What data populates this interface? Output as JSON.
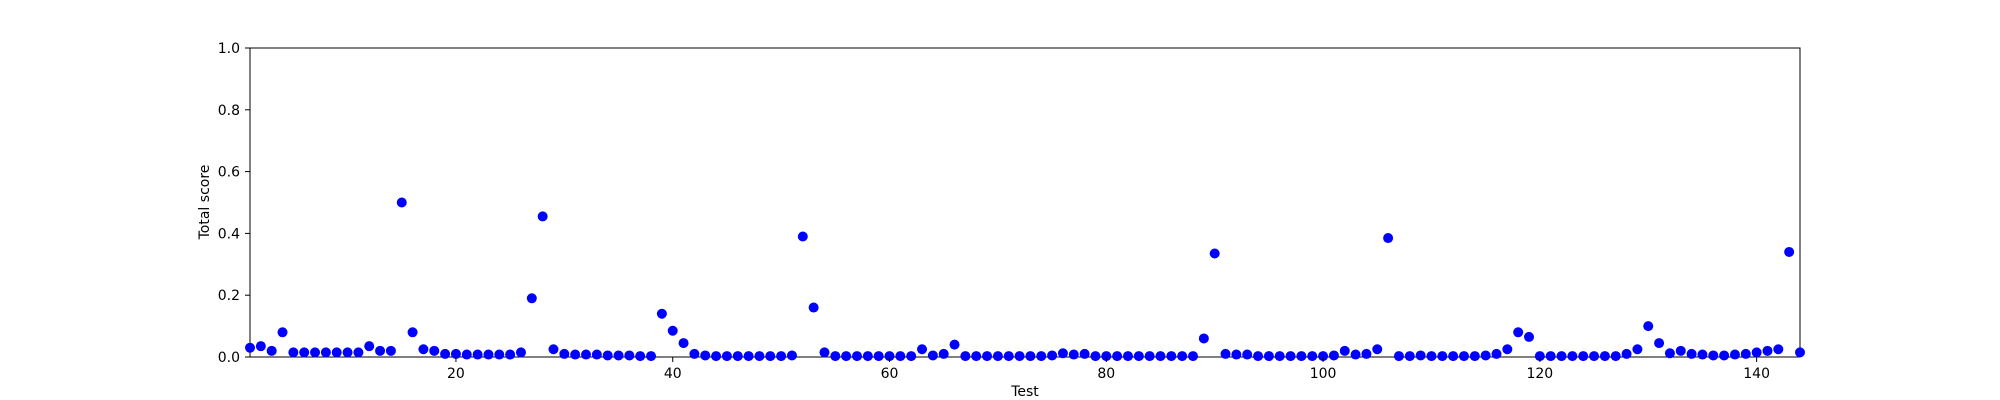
{
  "chart_data": {
    "type": "scatter",
    "title": "",
    "xlabel": "Test",
    "ylabel": "Total score",
    "xlim": [
      1,
      144
    ],
    "ylim": [
      0,
      1.0
    ],
    "x_ticks": [
      20,
      40,
      60,
      80,
      100,
      120,
      140
    ],
    "y_ticks": [
      "0.0",
      "0.2",
      "0.4",
      "0.6",
      "0.8",
      "1.0"
    ],
    "grid": false,
    "legend": "none",
    "point_color": "#0000ff",
    "series": [
      {
        "values": [
          [
            1,
            0.03
          ],
          [
            2,
            0.035
          ],
          [
            3,
            0.02
          ],
          [
            4,
            0.08
          ],
          [
            5,
            0.015
          ],
          [
            6,
            0.015
          ],
          [
            7,
            0.015
          ],
          [
            8,
            0.015
          ],
          [
            9,
            0.015
          ],
          [
            10,
            0.015
          ],
          [
            11,
            0.015
          ],
          [
            12,
            0.035
          ],
          [
            13,
            0.02
          ],
          [
            14,
            0.02
          ],
          [
            15,
            0.5
          ],
          [
            16,
            0.08
          ],
          [
            17,
            0.025
          ],
          [
            18,
            0.02
          ],
          [
            19,
            0.01
          ],
          [
            20,
            0.01
          ],
          [
            21,
            0.008
          ],
          [
            22,
            0.008
          ],
          [
            23,
            0.008
          ],
          [
            24,
            0.008
          ],
          [
            25,
            0.008
          ],
          [
            26,
            0.015
          ],
          [
            27,
            0.19
          ],
          [
            28,
            0.455
          ],
          [
            29,
            0.025
          ],
          [
            30,
            0.01
          ],
          [
            31,
            0.008
          ],
          [
            32,
            0.008
          ],
          [
            33,
            0.008
          ],
          [
            34,
            0.005
          ],
          [
            35,
            0.005
          ],
          [
            36,
            0.005
          ],
          [
            37,
            0.003
          ],
          [
            38,
            0.003
          ],
          [
            39,
            0.14
          ],
          [
            40,
            0.085
          ],
          [
            41,
            0.045
          ],
          [
            42,
            0.01
          ],
          [
            43,
            0.005
          ],
          [
            44,
            0.003
          ],
          [
            45,
            0.003
          ],
          [
            46,
            0.003
          ],
          [
            47,
            0.003
          ],
          [
            48,
            0.003
          ],
          [
            49,
            0.003
          ],
          [
            50,
            0.003
          ],
          [
            51,
            0.005
          ],
          [
            52,
            0.39
          ],
          [
            53,
            0.16
          ],
          [
            54,
            0.015
          ],
          [
            55,
            0.003
          ],
          [
            56,
            0.003
          ],
          [
            57,
            0.003
          ],
          [
            58,
            0.003
          ],
          [
            59,
            0.003
          ],
          [
            60,
            0.003
          ],
          [
            61,
            0.003
          ],
          [
            62,
            0.003
          ],
          [
            63,
            0.025
          ],
          [
            64,
            0.005
          ],
          [
            65,
            0.01
          ],
          [
            66,
            0.04
          ],
          [
            67,
            0.003
          ],
          [
            68,
            0.003
          ],
          [
            69,
            0.003
          ],
          [
            70,
            0.003
          ],
          [
            71,
            0.003
          ],
          [
            72,
            0.003
          ],
          [
            73,
            0.003
          ],
          [
            74,
            0.003
          ],
          [
            75,
            0.005
          ],
          [
            76,
            0.012
          ],
          [
            77,
            0.008
          ],
          [
            78,
            0.01
          ],
          [
            79,
            0.003
          ],
          [
            80,
            0.003
          ],
          [
            81,
            0.003
          ],
          [
            82,
            0.003
          ],
          [
            83,
            0.003
          ],
          [
            84,
            0.003
          ],
          [
            85,
            0.003
          ],
          [
            86,
            0.003
          ],
          [
            87,
            0.003
          ],
          [
            88,
            0.003
          ],
          [
            89,
            0.06
          ],
          [
            90,
            0.335
          ],
          [
            91,
            0.01
          ],
          [
            92,
            0.008
          ],
          [
            93,
            0.008
          ],
          [
            94,
            0.003
          ],
          [
            95,
            0.003
          ],
          [
            96,
            0.003
          ],
          [
            97,
            0.003
          ],
          [
            98,
            0.003
          ],
          [
            99,
            0.003
          ],
          [
            100,
            0.003
          ],
          [
            101,
            0.005
          ],
          [
            102,
            0.02
          ],
          [
            103,
            0.008
          ],
          [
            104,
            0.01
          ],
          [
            105,
            0.025
          ],
          [
            106,
            0.385
          ],
          [
            107,
            0.003
          ],
          [
            108,
            0.003
          ],
          [
            109,
            0.005
          ],
          [
            110,
            0.003
          ],
          [
            111,
            0.003
          ],
          [
            112,
            0.003
          ],
          [
            113,
            0.003
          ],
          [
            114,
            0.003
          ],
          [
            115,
            0.005
          ],
          [
            116,
            0.01
          ],
          [
            117,
            0.025
          ],
          [
            118,
            0.08
          ],
          [
            119,
            0.065
          ],
          [
            120,
            0.003
          ],
          [
            121,
            0.003
          ],
          [
            122,
            0.003
          ],
          [
            123,
            0.003
          ],
          [
            124,
            0.003
          ],
          [
            125,
            0.003
          ],
          [
            126,
            0.003
          ],
          [
            127,
            0.003
          ],
          [
            128,
            0.01
          ],
          [
            129,
            0.025
          ],
          [
            130,
            0.1
          ],
          [
            131,
            0.045
          ],
          [
            132,
            0.012
          ],
          [
            133,
            0.02
          ],
          [
            134,
            0.01
          ],
          [
            135,
            0.008
          ],
          [
            136,
            0.005
          ],
          [
            137,
            0.005
          ],
          [
            138,
            0.008
          ],
          [
            139,
            0.01
          ],
          [
            140,
            0.015
          ],
          [
            141,
            0.02
          ],
          [
            142,
            0.025
          ],
          [
            143,
            0.34
          ],
          [
            144,
            0.015
          ]
        ]
      }
    ]
  }
}
